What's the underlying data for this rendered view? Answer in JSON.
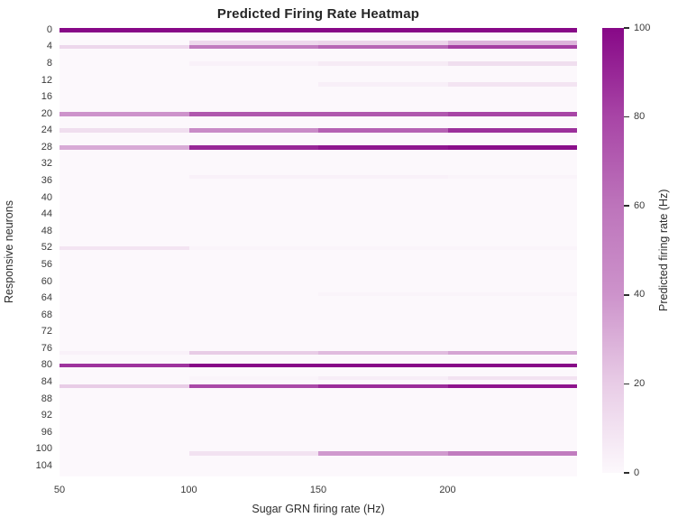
{
  "chart_data": {
    "type": "heatmap",
    "title": "Predicted Firing Rate Heatmap",
    "xlabel": "Sugar GRN firing rate (Hz)",
    "ylabel": "Responsive neurons",
    "colorbar_label": "Predicted firing rate (Hz)",
    "x_bin_edges_hz": [
      50,
      100,
      150,
      200,
      250
    ],
    "x_tick_labels": [
      "50",
      "100",
      "150",
      "200"
    ],
    "x_tick_values": [
      50,
      100,
      150,
      200
    ],
    "y_tick_values": [
      0,
      4,
      8,
      12,
      16,
      20,
      24,
      28,
      32,
      36,
      40,
      44,
      48,
      52,
      56,
      60,
      64,
      68,
      72,
      76,
      80,
      84,
      88,
      92,
      96,
      100,
      104
    ],
    "n_rows": 107,
    "n_cols": 4,
    "vmin": 0,
    "vmax": 100,
    "colorbar_tick_values": [
      0,
      20,
      40,
      60,
      80,
      100
    ],
    "colormap_stops": [
      [
        0,
        "#fcf8fc"
      ],
      [
        20,
        "#e8cce6"
      ],
      [
        40,
        "#cd93cb"
      ],
      [
        60,
        "#bd74bb"
      ],
      [
        80,
        "#a845a6"
      ],
      [
        100,
        "#870887"
      ]
    ],
    "background_value": 0,
    "nonzero_rows": {
      "0": [
        100,
        100,
        100,
        100
      ],
      "3": [
        0,
        14,
        16,
        28
      ],
      "4": [
        15,
        55,
        66,
        82
      ],
      "8": [
        0,
        3,
        6,
        12
      ],
      "13": [
        0,
        0,
        4,
        9
      ],
      "20": [
        40,
        72,
        72,
        80
      ],
      "24": [
        12,
        45,
        68,
        87
      ],
      "28": [
        32,
        90,
        95,
        98
      ],
      "35": [
        0,
        3,
        3,
        2
      ],
      "52": [
        9,
        2,
        2,
        2
      ],
      "63": [
        0,
        0,
        2,
        2
      ],
      "77": [
        3,
        20,
        26,
        34
      ],
      "80": [
        86,
        100,
        100,
        100
      ],
      "83": [
        0,
        2,
        5,
        10
      ],
      "85": [
        20,
        78,
        88,
        96
      ],
      "101": [
        0,
        10,
        38,
        55
      ]
    }
  }
}
